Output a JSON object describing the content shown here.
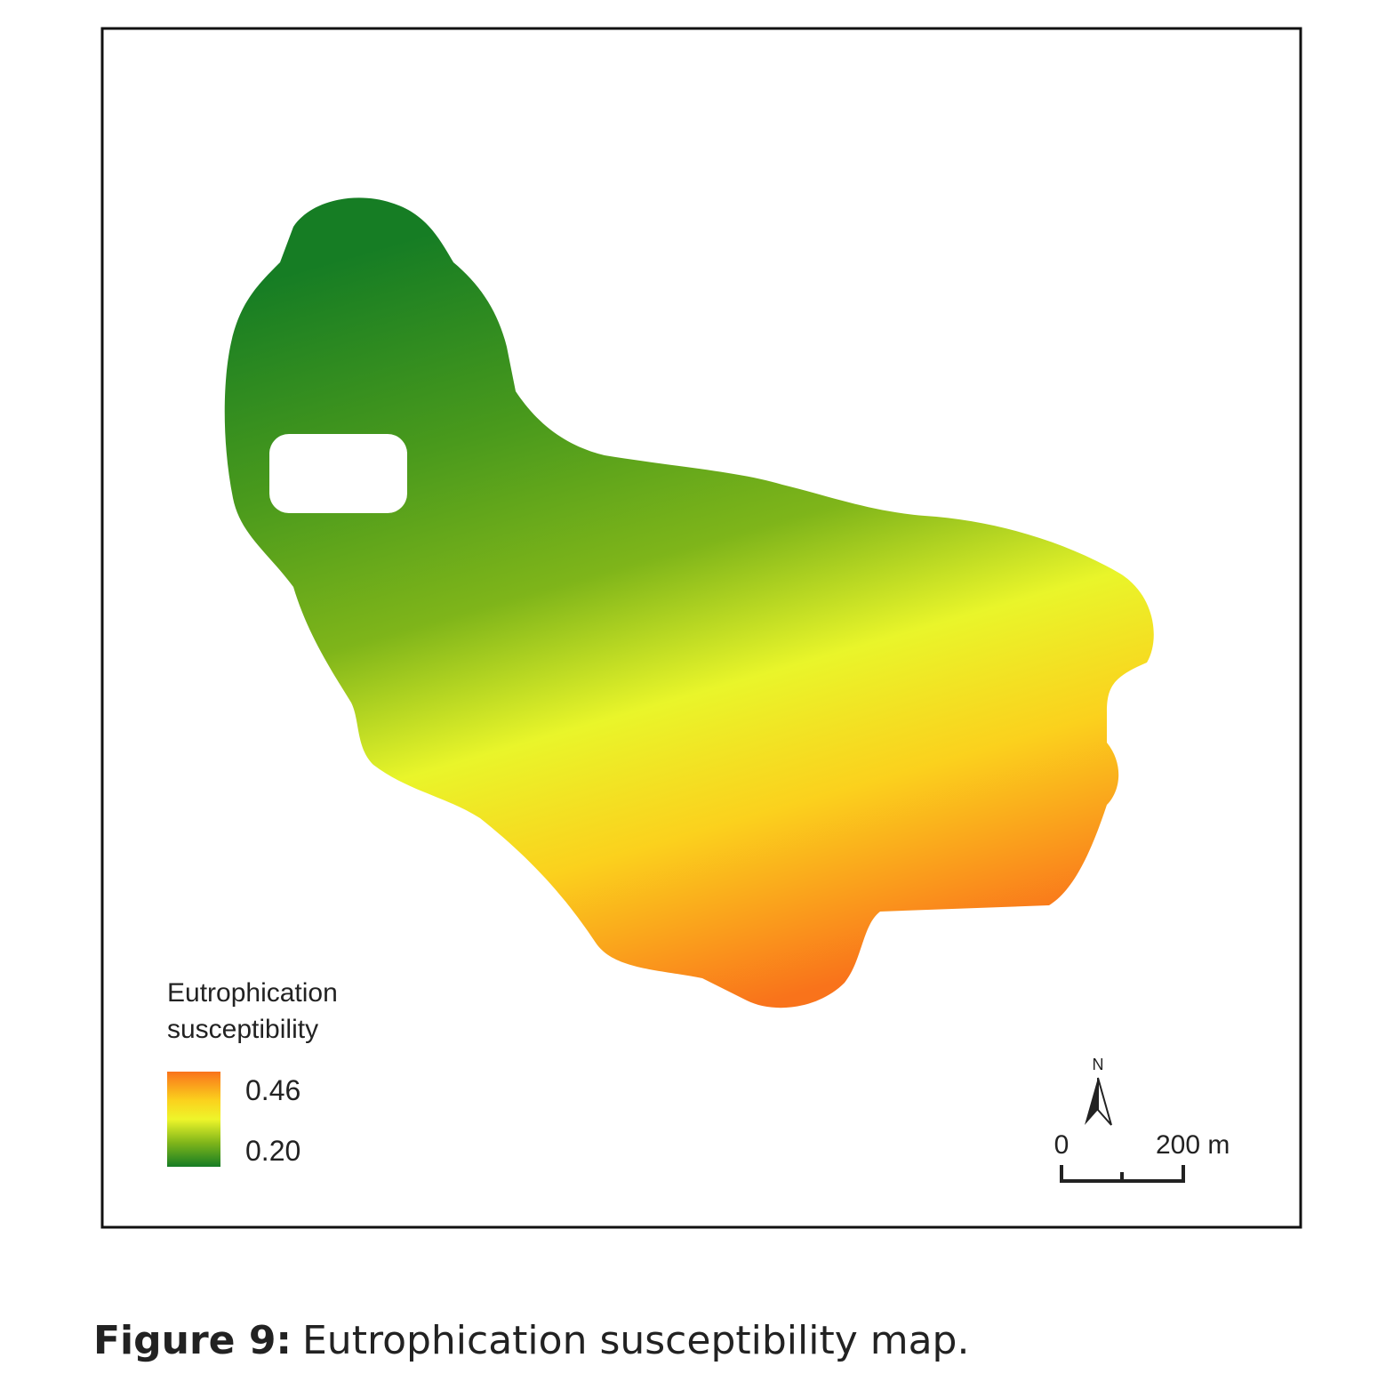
{
  "legend": {
    "title_line1": "Eutrophication",
    "title_line2": "susceptibility",
    "high": "0.46",
    "low": "0.20"
  },
  "north": "N",
  "scale": {
    "start": "0",
    "end": "200 m"
  },
  "caption": {
    "label": "Figure 9:",
    "text": "Eutrophication susceptibility map."
  }
}
